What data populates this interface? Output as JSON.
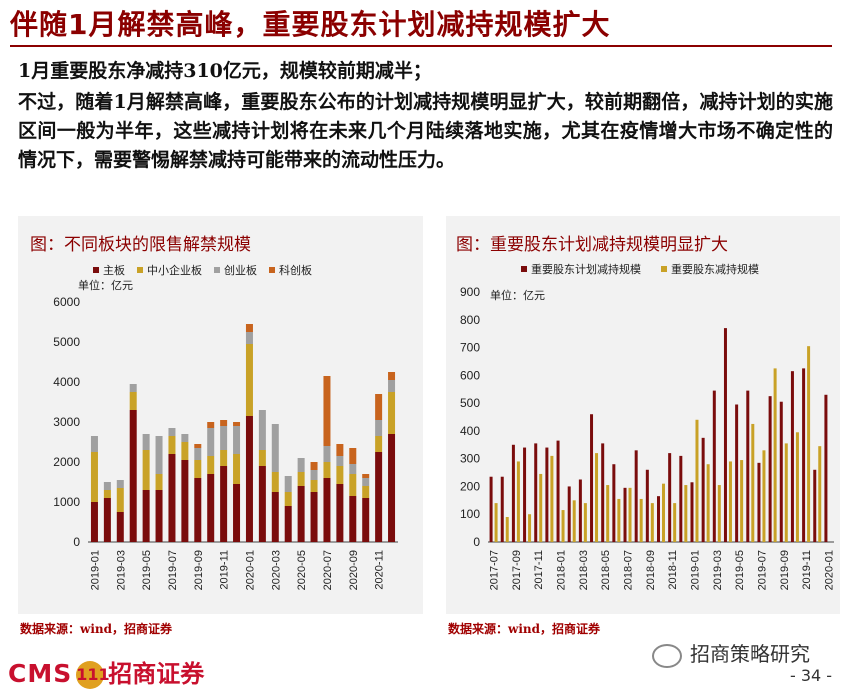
{
  "title": "伴随1月解禁高峰，重要股东计划减持规模扩大",
  "subtitle": "1月重要股东净减持310亿元，规模较前期减半；",
  "paragraph": "不过，随着1月解禁高峰，重要股东公布的计划减持规模明显扩大，较前期翻倍，减持计划的实施区间一般为半年，这些减持计划将在未来几个月陆续落地实施，尤其在疫情增大市场不确定性的情况下，需要警惕解禁减持可能带来的流动性压力。",
  "colors": {
    "brand": "#8b0000",
    "c1": "#7a0c0c",
    "c2": "#c9a227",
    "c3": "#a0a0a0",
    "c4": "#c8641e"
  },
  "chart_data": [
    {
      "type": "bar",
      "stacked": true,
      "title": "图：不同板块的限售解禁规模",
      "unit": "单位：亿元",
      "legend": [
        "主板",
        "中小企业板",
        "创业板",
        "科创板"
      ],
      "categories": [
        "2019-01",
        "2019-02",
        "2019-03",
        "2019-04",
        "2019-05",
        "2019-06",
        "2019-07",
        "2019-08",
        "2019-09",
        "2019-10",
        "2019-11",
        "2019-12",
        "2020-01",
        "2020-02",
        "2020-03",
        "2020-04",
        "2020-05",
        "2020-06",
        "2020-07",
        "2020-08",
        "2020-09",
        "2020-10",
        "2020-11",
        "2020-12"
      ],
      "x_ticks": [
        "2019-01",
        "2019-03",
        "2019-05",
        "2019-07",
        "2019-09",
        "2019-11",
        "2020-01",
        "2020-03",
        "2020-05",
        "2020-07",
        "2020-09",
        "2020-11"
      ],
      "series": [
        {
          "name": "主板",
          "values": [
            1000,
            1100,
            750,
            3300,
            1300,
            1300,
            2200,
            2050,
            1600,
            1700,
            1900,
            1450,
            3150,
            1900,
            1250,
            900,
            1400,
            1250,
            1600,
            1450,
            1150,
            1100,
            2250,
            2700
          ]
        },
        {
          "name": "中小企业板",
          "values": [
            1250,
            200,
            600,
            450,
            1000,
            400,
            450,
            450,
            450,
            450,
            400,
            750,
            1800,
            400,
            500,
            350,
            350,
            300,
            400,
            450,
            550,
            300,
            400,
            1050
          ]
        },
        {
          "name": "创业板",
          "values": [
            400,
            200,
            200,
            200,
            400,
            950,
            200,
            200,
            300,
            700,
            600,
            700,
            300,
            1000,
            1200,
            400,
            350,
            250,
            400,
            250,
            250,
            200,
            400,
            300
          ]
        },
        {
          "name": "科创板",
          "values": [
            0,
            0,
            0,
            0,
            0,
            0,
            0,
            0,
            100,
            150,
            150,
            100,
            200,
            0,
            0,
            0,
            0,
            200,
            1750,
            300,
            400,
            100,
            650,
            200
          ]
        }
      ],
      "ylim": [
        0,
        6000
      ],
      "y_ticks": [
        "0",
        "1000",
        "2000",
        "3000",
        "4000",
        "5000",
        "6000"
      ]
    },
    {
      "type": "bar",
      "stacked": false,
      "title": "图：重要股东计划减持规模明显扩大",
      "unit": "单位：亿元",
      "legend": [
        "重要股东计划减持规模",
        "重要股东减持规模"
      ],
      "categories": [
        "2017-07",
        "2017-08",
        "2017-09",
        "2017-10",
        "2017-11",
        "2017-12",
        "2018-01",
        "2018-02",
        "2018-03",
        "2018-04",
        "2018-05",
        "2018-06",
        "2018-07",
        "2018-08",
        "2018-09",
        "2018-10",
        "2018-11",
        "2018-12",
        "2019-01",
        "2019-02",
        "2019-03",
        "2019-04",
        "2019-05",
        "2019-06",
        "2019-07",
        "2019-08",
        "2019-09",
        "2019-10",
        "2019-11",
        "2019-12",
        "2020-01"
      ],
      "x_ticks": [
        "2017-07",
        "2017-09",
        "2017-11",
        "2018-01",
        "2018-03",
        "2018-05",
        "2018-07",
        "2018-09",
        "2018-11",
        "2019-01",
        "2019-03",
        "2019-05",
        "2019-07",
        "2019-09",
        "2019-11",
        "2020-01"
      ],
      "series": [
        {
          "name": "重要股东计划减持规模",
          "values": [
            235,
            235,
            350,
            340,
            355,
            340,
            365,
            200,
            225,
            460,
            355,
            280,
            195,
            330,
            260,
            165,
            320,
            310,
            215,
            375,
            545,
            770,
            495,
            545,
            285,
            525,
            505,
            615,
            625,
            260,
            530
          ]
        },
        {
          "name": "重要股东减持规模",
          "values": [
            140,
            90,
            290,
            100,
            245,
            310,
            115,
            150,
            140,
            320,
            205,
            155,
            195,
            155,
            140,
            210,
            140,
            205,
            440,
            280,
            205,
            290,
            295,
            425,
            330,
            625,
            355,
            395,
            705,
            345,
            0
          ]
        }
      ],
      "ylim": [
        0,
        900
      ],
      "y_ticks": [
        "0",
        "100",
        "200",
        "300",
        "400",
        "500",
        "600",
        "700",
        "800",
        "900"
      ]
    }
  ],
  "sources": {
    "left": "数据来源：wind，招商证券",
    "right": "数据来源：wind，招商证券"
  },
  "footer": {
    "logo_cms": "CMS",
    "logo_mark": "111",
    "logo_cn": "招商证券",
    "wechat": "招商策略研究",
    "page": "- 34 -"
  }
}
